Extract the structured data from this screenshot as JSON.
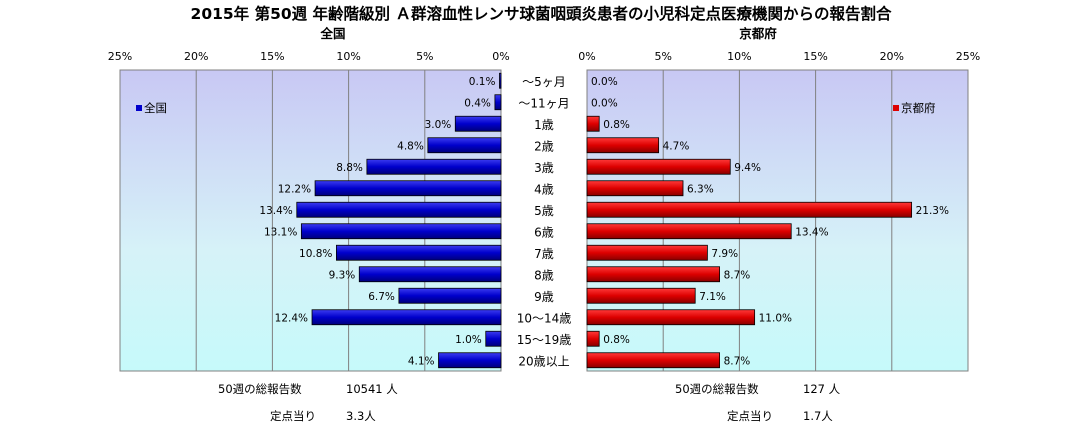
{
  "chart_data": {
    "type": "bar",
    "title": "2015年 第50週 年齢階級別 Ａ群溶血性レンサ球菌咽頭炎患者の小児科定点医療機関からの報告割合",
    "categories": [
      "～5ヶ月",
      "～11ヶ月",
      "1歳",
      "2歳",
      "3歳",
      "4歳",
      "5歳",
      "6歳",
      "7歳",
      "8歳",
      "9歳",
      "10～14歳",
      "15～19歳",
      "20歳以上"
    ],
    "panels": [
      {
        "panel_title": "全国",
        "legend": "全国",
        "color": "#0000CC",
        "direction": "left",
        "xlim": [
          0,
          25
        ],
        "ticks": [
          "25%",
          "20%",
          "15%",
          "10%",
          "5%",
          "0%"
        ],
        "tick_values": [
          25,
          20,
          15,
          10,
          5,
          0
        ],
        "values": [
          0.1,
          0.4,
          3.0,
          4.8,
          8.8,
          12.2,
          13.4,
          13.1,
          10.8,
          9.3,
          6.7,
          12.4,
          1.0,
          4.1
        ],
        "data_labels": [
          "0.1%",
          "0.4%",
          "3.0%",
          "4.8%",
          "8.8%",
          "12.2%",
          "13.4%",
          "13.1%",
          "10.8%",
          "9.3%",
          "6.7%",
          "12.4%",
          "1.0%",
          "4.1%"
        ]
      },
      {
        "panel_title": "京都府",
        "legend": "京都府",
        "color": "#DD0000",
        "direction": "right",
        "xlim": [
          0,
          25
        ],
        "ticks": [
          "0%",
          "5%",
          "10%",
          "15%",
          "20%",
          "25%"
        ],
        "tick_values": [
          0,
          5,
          10,
          15,
          20,
          25
        ],
        "values": [
          0.0,
          0.0,
          0.8,
          4.7,
          9.4,
          6.3,
          21.3,
          13.4,
          7.9,
          8.7,
          7.1,
          11.0,
          0.8,
          8.7
        ],
        "data_labels": [
          "0.0%",
          "0.0%",
          "0.8%",
          "4.7%",
          "9.4%",
          "6.3%",
          "21.3%",
          "13.4%",
          "7.9%",
          "8.7%",
          "7.1%",
          "11.0%",
          "0.8%",
          "8.7%"
        ]
      }
    ],
    "grid": true,
    "legend_placement": "top-left (全国), top-right (京都府)"
  },
  "summary": {
    "left": {
      "total_label": "50週の総報告数",
      "total_value": "10541 人",
      "per_label": "定点当り",
      "per_value": "3.3人"
    },
    "right": {
      "total_label": "50週の総報告数",
      "total_value": "127 人",
      "per_label": "定点当り",
      "per_value": "1.7人"
    }
  }
}
